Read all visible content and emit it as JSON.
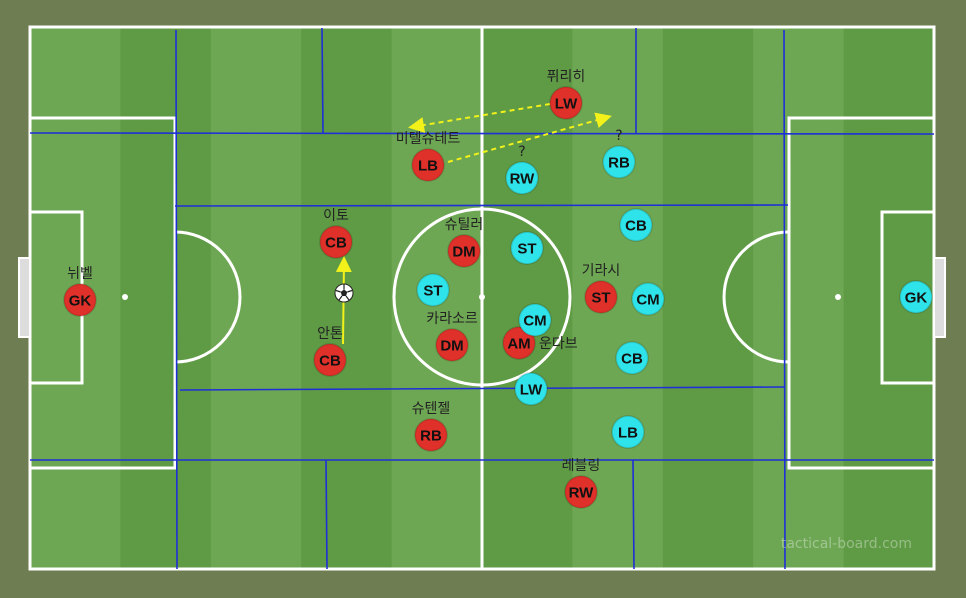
{
  "watermark": "tactical-board.com",
  "colors": {
    "background": "#6e7d52",
    "stripe_light": "#6ea753",
    "stripe_dark": "#5f9a45",
    "lines": "#ffffff",
    "zones": "#1f2fd8",
    "team_red": "#e0302a",
    "team_cyan": "#2ee4ea",
    "arrows": "#f2f21a"
  },
  "ball": {
    "icon": "soccer-ball-icon"
  },
  "team_red": [
    {
      "pos": "GK",
      "name": "뉘벨"
    },
    {
      "pos": "CB",
      "name": "이토"
    },
    {
      "pos": "CB",
      "name": "안톤"
    },
    {
      "pos": "LB",
      "name": "미텔슈테트"
    },
    {
      "pos": "LW",
      "name": "퓌리히"
    },
    {
      "pos": "DM",
      "name": "슈틸러"
    },
    {
      "pos": "DM",
      "name": "카라소르"
    },
    {
      "pos": "AM",
      "name": "운다브"
    },
    {
      "pos": "ST",
      "name": "기라시"
    },
    {
      "pos": "RB",
      "name": "슈텐젤"
    },
    {
      "pos": "RW",
      "name": "레블링"
    }
  ],
  "team_cyan": [
    {
      "pos": "RW",
      "name": "?"
    },
    {
      "pos": "RB",
      "name": "?"
    },
    {
      "pos": "CB",
      "name": ""
    },
    {
      "pos": "ST",
      "name": ""
    },
    {
      "pos": "ST",
      "name": ""
    },
    {
      "pos": "CM",
      "name": ""
    },
    {
      "pos": "CM",
      "name": ""
    },
    {
      "pos": "CB",
      "name": ""
    },
    {
      "pos": "LW",
      "name": ""
    },
    {
      "pos": "LB",
      "name": ""
    },
    {
      "pos": "GK",
      "name": ""
    }
  ]
}
